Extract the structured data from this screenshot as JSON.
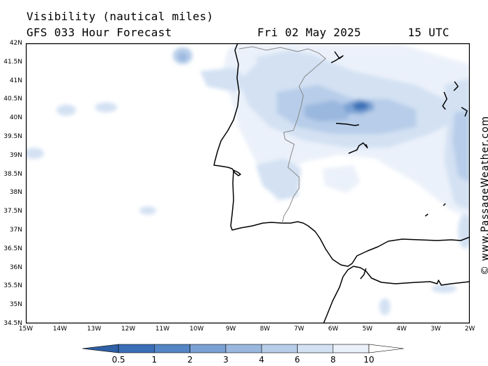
{
  "header": {
    "line1": "Visibility (nautical miles)",
    "line2": "GFS 033 Hour Forecast",
    "date": "Fri 02 May 2025",
    "time": "15 UTC"
  },
  "credit": "© www.PassageWeather.com",
  "axes": {
    "lat_labels": [
      "42N",
      "41.5N",
      "41N",
      "40.5N",
      "40N",
      "39.5N",
      "39N",
      "38.5N",
      "38N",
      "37.5N",
      "37N",
      "36.5N",
      "36N",
      "35.5N",
      "35N",
      "34.5N"
    ],
    "lon_labels": [
      "15W",
      "14W",
      "13W",
      "12W",
      "11W",
      "10W",
      "9W",
      "8W",
      "7W",
      "6W",
      "5W",
      "4W",
      "3W",
      "2W"
    ]
  },
  "legend": {
    "labels": [
      "0.5",
      "1",
      "2",
      "3",
      "4",
      "6",
      "8",
      "10"
    ],
    "colors": [
      "#3a6fb7",
      "#5485c4",
      "#7aa1d3",
      "#9ab7de",
      "#b7cde9",
      "#d3e1f3",
      "#ebf1fa",
      "#ffffff"
    ]
  }
}
